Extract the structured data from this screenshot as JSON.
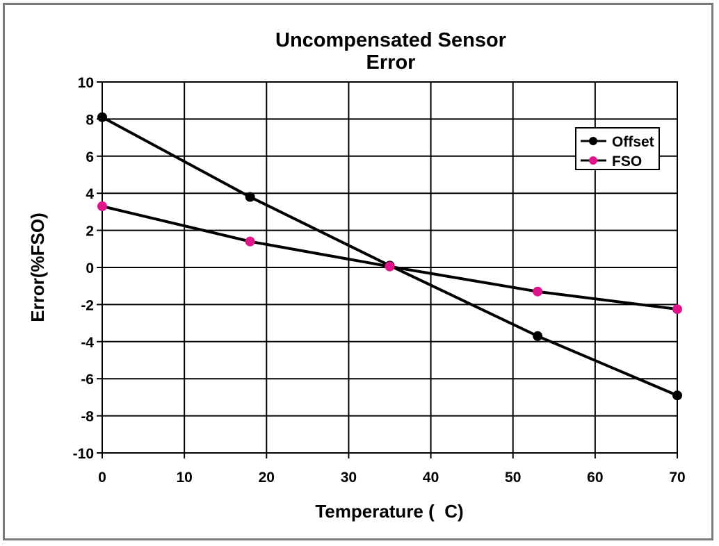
{
  "chart_data": {
    "type": "line",
    "title_lines": [
      "Uncompensated Sensor",
      "Error"
    ],
    "xlabel": "Temperature (  C)",
    "ylabel": "Error(%FSO)",
    "xlim": [
      0,
      70
    ],
    "ylim": [
      -10,
      10
    ],
    "xticks": [
      0,
      10,
      20,
      30,
      40,
      50,
      60,
      70
    ],
    "yticks": [
      10,
      8,
      6,
      4,
      2,
      0,
      -2,
      -4,
      -6,
      -8,
      -10
    ],
    "grid": true,
    "legend_position": "top-right",
    "series": [
      {
        "name": "Offset",
        "color": "#000000",
        "x": [
          0,
          18,
          35,
          53,
          70
        ],
        "y": [
          8.1,
          3.8,
          0.1,
          -3.7,
          -6.9
        ]
      },
      {
        "name": "FSO",
        "color": "#e0158a",
        "x": [
          0,
          18,
          35,
          53,
          70
        ],
        "y": [
          3.3,
          1.4,
          0.05,
          -1.3,
          -2.25
        ]
      }
    ]
  }
}
